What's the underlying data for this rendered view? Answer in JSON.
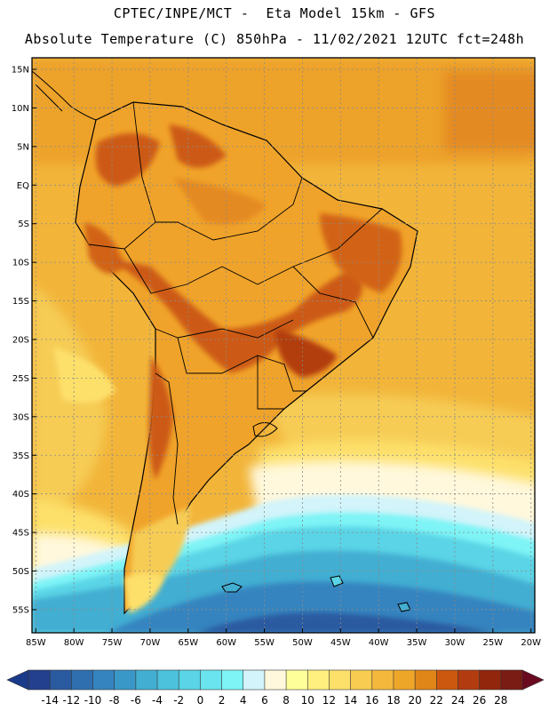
{
  "header": {
    "line1": "CPTEC/INPE/MCT -  Eta Model 15km - GFS",
    "line2": "Absolute Temperature (C) 850hPa - 11/02/2021 12UTC fct=248h"
  },
  "map": {
    "lat_labels": [
      "15N",
      "10N",
      "5N",
      "EQ",
      "5S",
      "10S",
      "15S",
      "20S",
      "25S",
      "30S",
      "35S",
      "40S",
      "45S",
      "50S",
      "55S"
    ],
    "lon_labels": [
      "85W",
      "80W",
      "75W",
      "70W",
      "65W",
      "60W",
      "55W",
      "50W",
      "45W",
      "40W",
      "35W",
      "30W",
      "25W",
      "20W"
    ],
    "lat_values": [
      15,
      10,
      5,
      0,
      -5,
      -10,
      -15,
      -20,
      -25,
      -30,
      -35,
      -40,
      -45,
      -50,
      -55
    ],
    "lon_values": [
      -85,
      -80,
      -75,
      -70,
      -65,
      -60,
      -55,
      -50,
      -45,
      -40,
      -35,
      -30,
      -25,
      -20
    ],
    "extent": {
      "lon_min": -85.5,
      "lon_max": -19.5,
      "lat_min": -58,
      "lat_max": 16.5
    },
    "temperature_zones": [
      {
        "name": "tropical-ocean-north",
        "temp_c": 18
      },
      {
        "name": "continental-interior",
        "temp_c": 20
      },
      {
        "name": "hot-core-chaco-andes",
        "temp_c": 24
      },
      {
        "name": "northeast-brazil-hot",
        "temp_c": 22
      },
      {
        "name": "subtropical-atlantic",
        "temp_c": 14
      },
      {
        "name": "patagonia-cool",
        "temp_c": 6
      },
      {
        "name": "southern-ocean-cold",
        "temp_c": -6
      }
    ]
  },
  "colorbar": {
    "labels": [
      "-14",
      "-12",
      "-10",
      "-8",
      "-6",
      "-4",
      "-2",
      "0",
      "2",
      "4",
      "6",
      "8",
      "10",
      "12",
      "14",
      "16",
      "18",
      "20",
      "22",
      "24",
      "26",
      "28"
    ],
    "low_color": "#1a3a8a",
    "high_color": "#6a0a20",
    "colors": [
      "#22408e",
      "#2a5aa0",
      "#2f6fb0",
      "#3584bf",
      "#3a98c9",
      "#42aed2",
      "#4cc2dd",
      "#5ad4e6",
      "#6ae4ee",
      "#7ef4f6",
      "#d2f4fa",
      "#fff8dc",
      "#ffff9a",
      "#fff080",
      "#fde06a",
      "#f8cc50",
      "#f4b83c",
      "#eea628",
      "#e08618",
      "#cc5810",
      "#b23c10",
      "#92260c",
      "#7a1c14"
    ]
  },
  "colors": {
    "ocean_warm": "#f2b53a",
    "land_hot": "#cc5a14"
  }
}
